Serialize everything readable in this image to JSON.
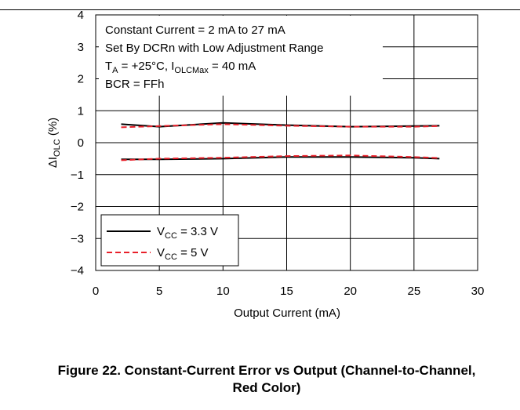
{
  "caption": "Figure 22. Constant-Current Error vs Output (Channel-to-Channel, Red Color)",
  "chart_data": {
    "type": "line",
    "xlabel": "Output Current (mA)",
    "ylabel": {
      "prefix": "ΔI",
      "sub": "OLC",
      "suffix": " (%)"
    },
    "xlim": [
      0,
      30
    ],
    "ylim": [
      -4,
      4
    ],
    "xticks": [
      "0",
      "5",
      "10",
      "15",
      "20",
      "25",
      "30"
    ],
    "yticks": [
      "4",
      "3",
      "2",
      "1",
      "0",
      "−1",
      "−2",
      "−3",
      "−4"
    ],
    "grid": true,
    "legend_position": "bottom-left",
    "annotations": {
      "line1": "Constant Current = 2 mA to 27 mA",
      "line2": "Set By DCRn with Low Adjustment Range",
      "line3": {
        "a": "T",
        "a_sub": "A",
        "b": " = +25°C, I",
        "b_sub": "OLCMax",
        "c": " = 40 mA"
      },
      "line4": "BCR = FFh"
    },
    "series": [
      {
        "legend": {
          "pre": "V",
          "sub": "CC",
          "post": " = 3.3 V"
        },
        "color": "#000000",
        "style": "solid",
        "lines": [
          {
            "x": [
              2,
              5,
              10,
              15,
              20,
              25,
              27
            ],
            "y": [
              0.58,
              0.5,
              0.62,
              0.55,
              0.5,
              0.52,
              0.53
            ]
          },
          {
            "x": [
              2,
              5,
              10,
              15,
              20,
              25,
              27
            ],
            "y": [
              -0.52,
              -0.52,
              -0.5,
              -0.45,
              -0.45,
              -0.47,
              -0.5
            ]
          }
        ]
      },
      {
        "legend": {
          "pre": "V",
          "sub": "CC",
          "post": " = 5 V"
        },
        "color": "#e8202a",
        "style": "dashed",
        "lines": [
          {
            "x": [
              2,
              5,
              10,
              15,
              20,
              25,
              27
            ],
            "y": [
              0.48,
              0.52,
              0.58,
              0.53,
              0.5,
              0.5,
              0.52
            ]
          },
          {
            "x": [
              2,
              5,
              10,
              15,
              20,
              25,
              27
            ],
            "y": [
              -0.55,
              -0.5,
              -0.47,
              -0.42,
              -0.4,
              -0.45,
              -0.48
            ]
          }
        ]
      }
    ]
  }
}
